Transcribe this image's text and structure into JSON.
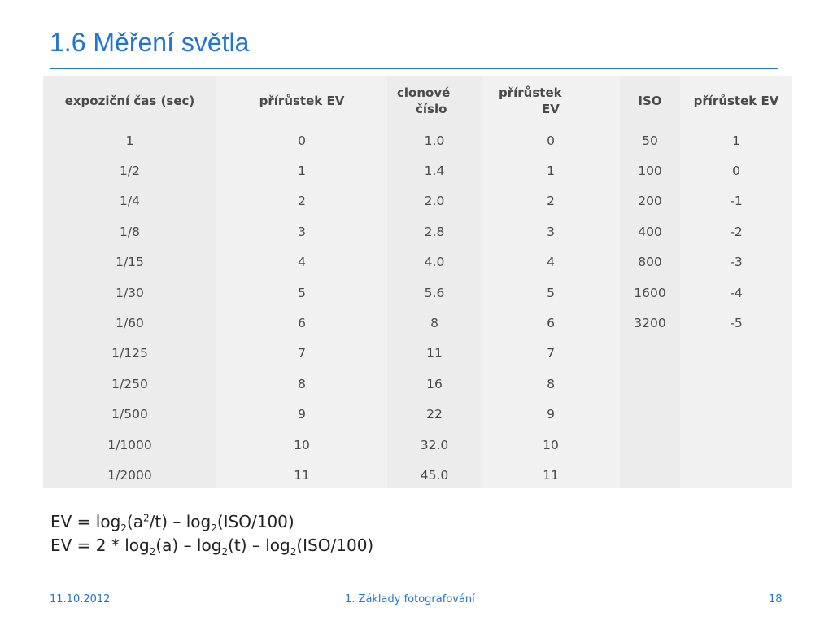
{
  "slide": {
    "title": "1.6 Měření světla",
    "footer": {
      "date": "11.10.2012",
      "topic": "1. Základy fotografování",
      "page": "18"
    }
  },
  "table": {
    "headers": [
      {
        "line1": "expoziční čas (sec)"
      },
      {
        "line1": "přírůstek EV"
      },
      {
        "line1": "clonové",
        "line2": "číslo"
      },
      {
        "line1": "přírůstek",
        "line2": "EV"
      },
      {
        "line1": "ISO"
      },
      {
        "line1": "přírůstek EV"
      }
    ],
    "rows": [
      [
        "1",
        "0",
        "1.0",
        "0",
        "50",
        "1"
      ],
      [
        "1/2",
        "1",
        "1.4",
        "1",
        "100",
        "0"
      ],
      [
        "1/4",
        "2",
        "2.0",
        "2",
        "200",
        "-1"
      ],
      [
        "1/8",
        "3",
        "2.8",
        "3",
        "400",
        "-2"
      ],
      [
        "1/15",
        "4",
        "4.0",
        "4",
        "800",
        "-3"
      ],
      [
        "1/30",
        "5",
        "5.6",
        "5",
        "1600",
        "-4"
      ],
      [
        "1/60",
        "6",
        "8",
        "6",
        "3200",
        "-5"
      ],
      [
        "1/125",
        "7",
        "11",
        "7",
        "",
        ""
      ],
      [
        "1/250",
        "8",
        "16",
        "8",
        "",
        ""
      ],
      [
        "1/500",
        "9",
        "22",
        "9",
        "",
        ""
      ],
      [
        "1/1000",
        "10",
        "32.0",
        "10",
        "",
        ""
      ],
      [
        "1/2000",
        "11",
        "45.0",
        "11",
        "",
        ""
      ]
    ]
  },
  "formulas": {
    "line1": {
      "p1": "EV = log",
      "s1": "2",
      "p2": "(a",
      "sup": "2",
      "p3": "/t) – log",
      "s2": "2",
      "p4": "(ISO/100)"
    },
    "line2": {
      "p1": "EV = 2 * log",
      "s1": "2",
      "p2": "(a) – log",
      "s2": "2",
      "p3": "(t) – log",
      "s3": "2",
      "p4": "(ISO/100)"
    }
  }
}
